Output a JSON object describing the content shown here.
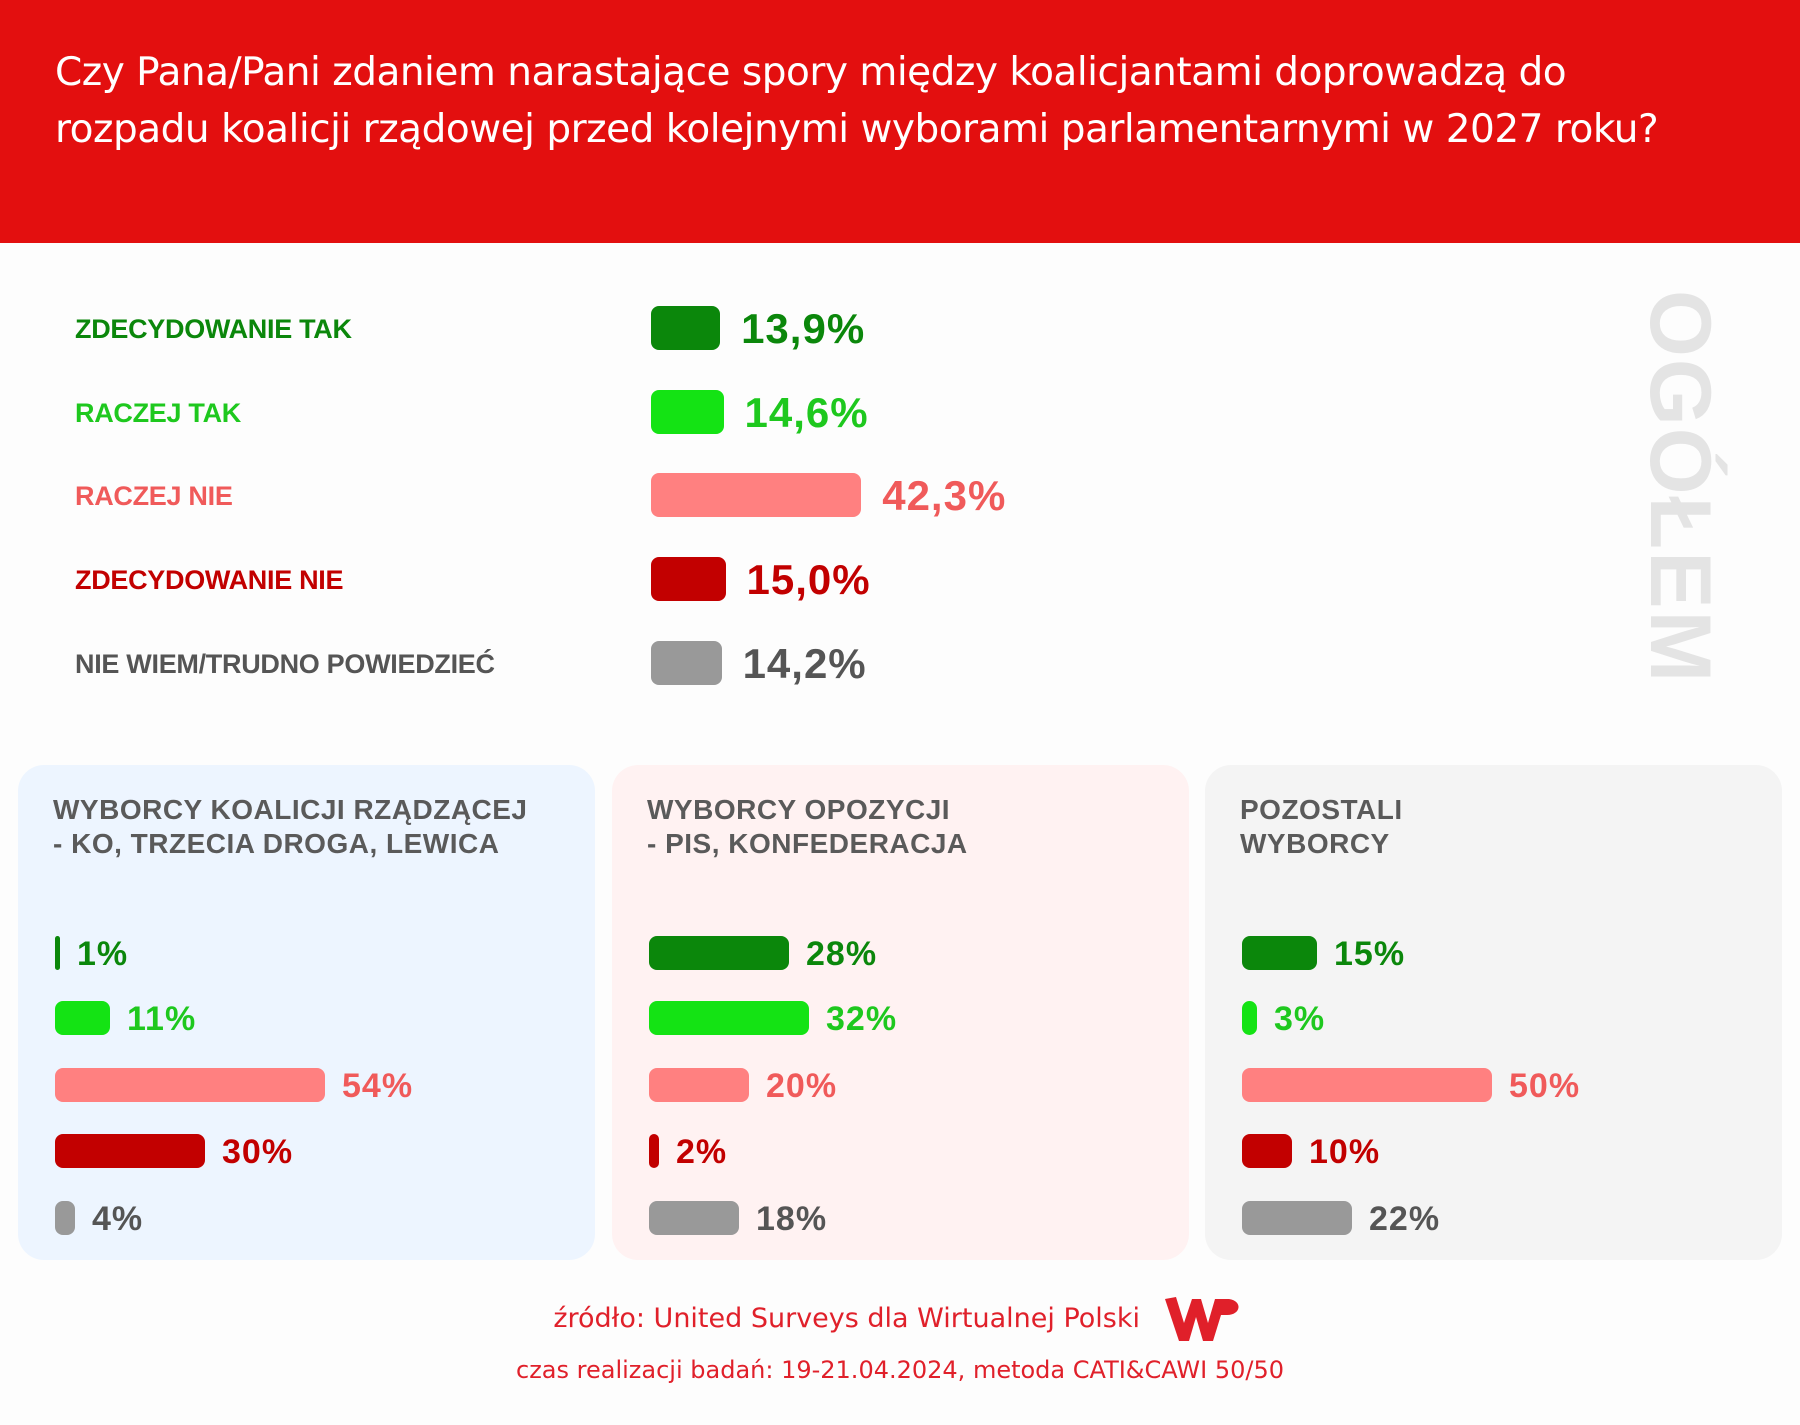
{
  "header": {
    "title": "Czy Pana/Pani zdaniem narastające spory między koalicjantami doprowadzą do rozpadu koalicji rządowej przed kolejnymi wyborami parlamentarnymi w 2027 roku?"
  },
  "chart_data": {
    "type": "bar",
    "title": "Czy Pana/Pani zdaniem narastające spory między koalicjantami doprowadzą do rozpadu koalicji rządowej przed kolejnymi wyborami parlamentarnymi w 2027 roku?",
    "categories": [
      "ZDECYDOWANIE TAK",
      "RACZEJ TAK",
      "RACZEJ NIE",
      "ZDECYDOWANIE NIE",
      "NIE WIEM/TRUDNO POWIEDZIEĆ"
    ],
    "colors": [
      "#0b870b",
      "#14e314",
      "#ff8080",
      "#c20000",
      "#999999"
    ],
    "text_colors": [
      "#0b870b",
      "#1ec81e",
      "#f05a5a",
      "#c20000",
      "#555555"
    ],
    "overall": {
      "name": "OGÓŁEM",
      "values": [
        13.9,
        14.6,
        42.3,
        15.0,
        14.2
      ],
      "labels": [
        "13,9%",
        "14,6%",
        "42,3%",
        "15,0%",
        "14,2%"
      ]
    },
    "series": [
      {
        "name": "WYBORCY KOALICJI RZĄDZĄCEJ - KO, TRZECIA DROGA, LEWICA",
        "title_lines": [
          "WYBORCY KOALICJI RZĄDZĄCEJ",
          "- KO, TRZECIA DROGA, LEWICA"
        ],
        "values": [
          1,
          11,
          54,
          30,
          4
        ],
        "labels": [
          "1%",
          "11%",
          "54%",
          "30%",
          "4%"
        ],
        "background": "#edf5ff"
      },
      {
        "name": "WYBORCY OPOZYCJI - PIS, KONFEDERACJA",
        "title_lines": [
          "WYBORCY OPOZYCJI",
          "- PIS, KONFEDERACJA"
        ],
        "values": [
          28,
          32,
          20,
          2,
          18
        ],
        "labels": [
          "28%",
          "32%",
          "20%",
          "2%",
          "18%"
        ],
        "background": "#fff2f2"
      },
      {
        "name": "POZOSTALI WYBORCY",
        "title_lines": [
          "POZOSTALI",
          "WYBORCY"
        ],
        "values": [
          15,
          3,
          50,
          10,
          22
        ],
        "labels": [
          "15%",
          "3%",
          "50%",
          "10%",
          "22%"
        ],
        "background": "#f4f4f4"
      }
    ],
    "xlabel": "",
    "ylabel": ""
  },
  "footer": {
    "source": "źródło: United Surveys dla Wirtualnej Polski",
    "method": "czas realizacji badań: 19-21.04.2024, metoda CATI&CAWI 50/50",
    "logo": "WP"
  }
}
